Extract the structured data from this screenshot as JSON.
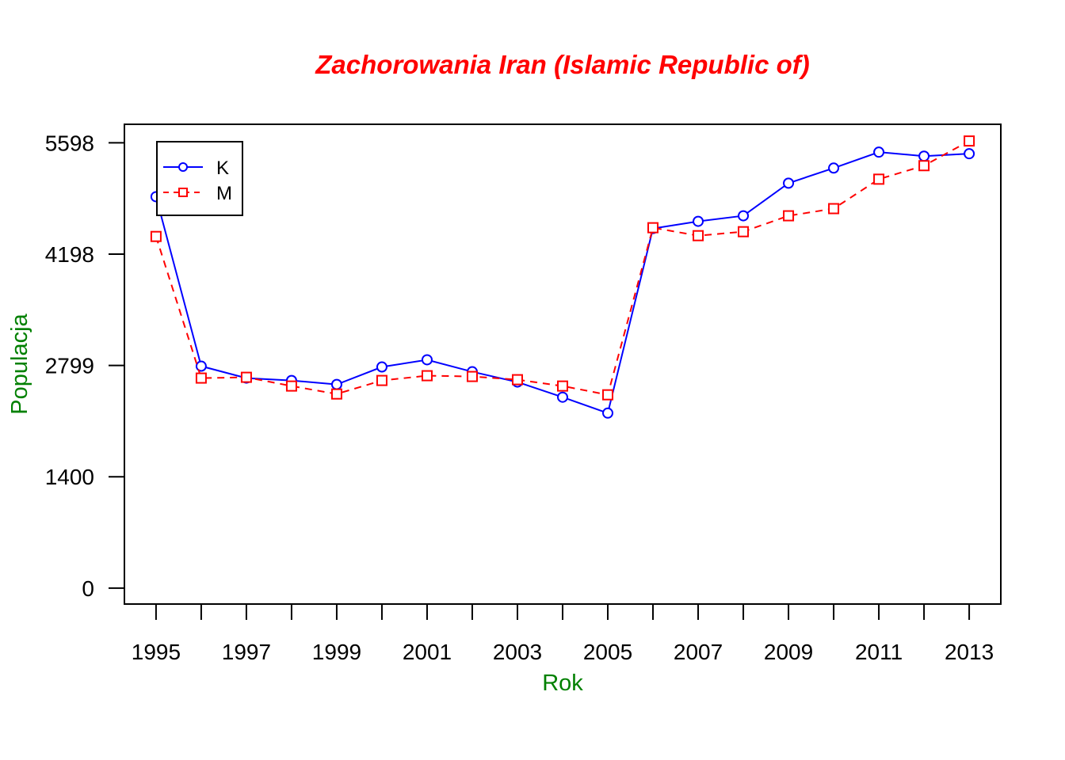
{
  "chart_data": {
    "type": "line",
    "title": "Zachorowania Iran (Islamic Republic of)",
    "xlabel": "Rok",
    "ylabel": "Populacja",
    "x": [
      1995,
      1996,
      1997,
      1998,
      1999,
      2000,
      2001,
      2002,
      2003,
      2004,
      2005,
      2006,
      2007,
      2008,
      2009,
      2010,
      2011,
      2012,
      2013
    ],
    "xticks": [
      "1995",
      "1997",
      "1999",
      "2001",
      "2003",
      "2005",
      "2007",
      "2009",
      "2011",
      "2013"
    ],
    "yticks": [
      "0",
      "1400",
      "2799",
      "4198",
      "5598"
    ],
    "ylim": [
      -200,
      5830
    ],
    "xlim": [
      1994.3,
      2013.7
    ],
    "series": [
      {
        "name": "K",
        "color": "#0000ff",
        "dash": "solid",
        "marker": "circle",
        "values": [
          4920,
          2790,
          2640,
          2610,
          2560,
          2780,
          2870,
          2720,
          2590,
          2400,
          2200,
          4520,
          4610,
          4680,
          5090,
          5280,
          5480,
          5430,
          5460
        ]
      },
      {
        "name": "M",
        "color": "#ff0000",
        "dash": "dashed",
        "marker": "square",
        "values": [
          4420,
          2640,
          2650,
          2540,
          2440,
          2610,
          2670,
          2660,
          2620,
          2540,
          2430,
          4530,
          4430,
          4480,
          4680,
          4770,
          5140,
          5310,
          5620
        ]
      }
    ],
    "legend_position": "top-left",
    "grid": false,
    "colors": {
      "title": "#ff0000",
      "axis_label": "#008000",
      "axes": "#000000"
    }
  }
}
